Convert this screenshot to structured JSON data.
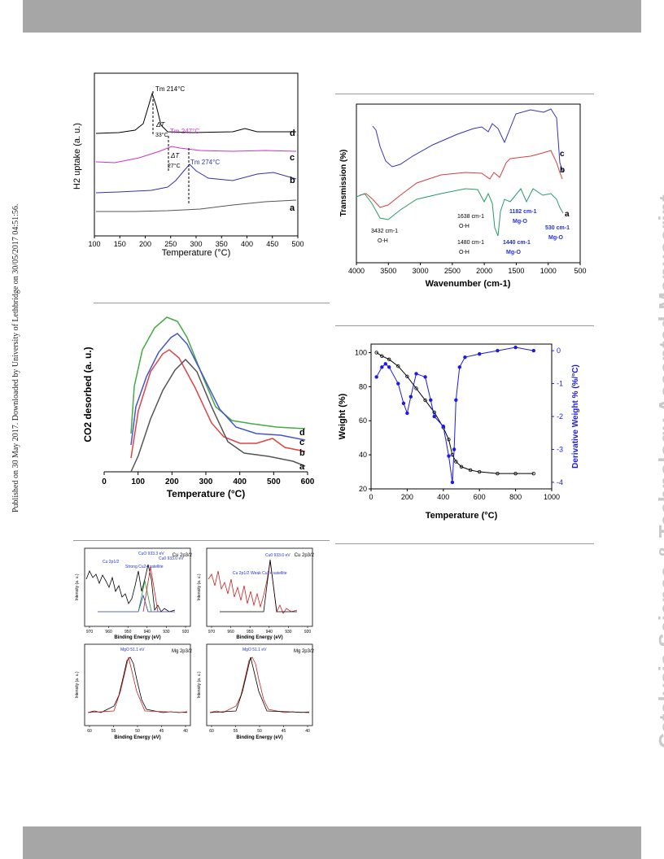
{
  "header": {
    "bar_color": "#a6a6a6"
  },
  "footer": {
    "bar_color": "#a6a6a6"
  },
  "side_left_text": "Published on 30 May 2017. Downloaded by University of Lethbridge on 30/05/2017 04:51:56.",
  "side_right_text": "Catalysis Science & Technology Accepted Manuscript",
  "chart_data": [
    {
      "type": "line",
      "name": "h2-tpr",
      "xlabel": "Temperature (°C)",
      "ylabel": "H2 uptake (a. u.)",
      "xlim": [
        100,
        500
      ],
      "xticks": [
        100,
        150,
        200,
        250,
        300,
        350,
        400,
        450,
        500
      ],
      "series": [
        {
          "name": "d",
          "color": "#000000",
          "peak": 214
        },
        {
          "name": "c",
          "color": "#cc33cc",
          "peak": 247
        },
        {
          "name": "b",
          "color": "#3333aa",
          "peak": 274
        },
        {
          "name": "a",
          "color": "#555555"
        }
      ],
      "annotations": {
        "peak_d": "Tm 214°C",
        "peak_c": "Tm 247°C",
        "peak_b": "Tm 274°C",
        "delta1_label": "ΔT",
        "delta1_value": "33°C",
        "delta2_label": "ΔT",
        "delta2_value": "27°C"
      }
    },
    {
      "type": "line",
      "name": "ftir",
      "xlabel": "Wavenumber (cm-1)",
      "ylabel": "Transmission (%)",
      "xlim": [
        4000,
        500
      ],
      "xticks": [
        4000,
        3500,
        3000,
        2500,
        2000,
        1500,
        1000,
        500
      ],
      "series": [
        {
          "name": "c",
          "color": "#3333bb"
        },
        {
          "name": "b",
          "color": "#d04040"
        },
        {
          "name": "a",
          "color": "#2a9a6a"
        }
      ],
      "annotations": {
        "oh1_wn": "3432 cm-1",
        "oh1_label": "O-H",
        "oh2_wn": "1638 cm-1",
        "oh2_label": "O-H",
        "oh3_wn": "1480 cm-1",
        "oh3_label": "O-H",
        "mgo1_wn": "1440 cm-1",
        "mgo1_label": "Mg-O",
        "mgo2_wn": "1182 cm-1",
        "mgo2_label": "Mg-O",
        "mgo3_wn": "530 cm-1",
        "mgo3_label": "Mg-O"
      }
    },
    {
      "type": "line",
      "name": "co2-tpd",
      "xlabel": "Temperature (°C)",
      "ylabel": "CO2 desorbed (a. u.)",
      "xlim": [
        0,
        600
      ],
      "xticks": [
        0,
        100,
        200,
        300,
        400,
        500,
        600
      ],
      "series": [
        {
          "name": "d",
          "color": "#44aa44"
        },
        {
          "name": "c",
          "color": "#4455cc"
        },
        {
          "name": "b",
          "color": "#dd4444"
        },
        {
          "name": "a",
          "color": "#555555"
        }
      ]
    },
    {
      "type": "line",
      "name": "tga",
      "xlabel": "Temperature (°C)",
      "ylabel": "Weight (%)",
      "y2label": "Derivative Weight % (%/°C)",
      "xlim": [
        0,
        1000
      ],
      "ylim": [
        20,
        105
      ],
      "y2lim": [
        -4.2,
        0.2
      ],
      "xticks": [
        0,
        200,
        400,
        600,
        800,
        1000
      ],
      "yticks": [
        20,
        40,
        60,
        80,
        100
      ],
      "y2ticks": [
        0,
        -1,
        -2,
        -3,
        -4
      ],
      "series": [
        {
          "name": "Weight",
          "color": "#000000",
          "x": [
            30,
            60,
            100,
            150,
            200,
            250,
            300,
            350,
            400,
            430,
            450,
            470,
            500,
            550,
            600,
            700,
            800,
            900
          ],
          "y": [
            100,
            98,
            96,
            92,
            86,
            79,
            72,
            65,
            56,
            49,
            40,
            36,
            33,
            31,
            30,
            29,
            29,
            29
          ]
        },
        {
          "name": "Derivative",
          "color": "#1a1aee",
          "x": [
            30,
            60,
            80,
            100,
            150,
            180,
            200,
            220,
            250,
            300,
            330,
            350,
            400,
            430,
            450,
            460,
            470,
            490,
            520,
            600,
            700,
            800,
            900
          ],
          "y": [
            -0.8,
            -0.5,
            -0.4,
            -0.5,
            -1.0,
            -1.6,
            -1.9,
            -1.4,
            -0.7,
            -0.8,
            -1.5,
            -2.0,
            -2.3,
            -3.2,
            -4.0,
            -3.0,
            -1.5,
            -0.5,
            -0.2,
            -0.1,
            0.0,
            0.1,
            0.0
          ]
        }
      ]
    },
    {
      "type": "line",
      "name": "xps",
      "panels": [
        {
          "title": "Cu 2p3/2",
          "xlabel": "Binding Energy (eV)",
          "ylabel": "Intensity (a. u.)",
          "xticks": [
            970,
            960,
            950,
            940,
            930,
            920
          ],
          "labels": [
            "Cu 2p1/2",
            "CuO 933.3 eV",
            "Cu0 933.0 eV",
            "Strong Cu2+ satellite"
          ]
        },
        {
          "title": "Cu 2p3/2",
          "xlabel": "Binding Energy (eV)",
          "ylabel": "Intensity (a. u.)",
          "xticks": [
            970,
            960,
            950,
            940,
            930,
            920
          ],
          "labels": [
            "Cu0 933.0 eV",
            "Cu 2p1/2",
            "Weak Cu2+ satellite"
          ]
        },
        {
          "title": "Mg 2p3/2",
          "xlabel": "Binding Energy (eV)",
          "ylabel": "Intensity (a. u.)",
          "xticks": [
            60,
            55,
            50,
            45,
            40
          ],
          "labels": [
            "MgO 51.1 eV"
          ]
        },
        {
          "title": "Mg 2p3/2",
          "xlabel": "Binding Energy (eV)",
          "ylabel": "Intensity (a. u.)",
          "xticks": [
            60,
            55,
            50,
            45,
            40
          ],
          "labels": [
            "MgO 51.1 eV"
          ]
        }
      ]
    }
  ]
}
